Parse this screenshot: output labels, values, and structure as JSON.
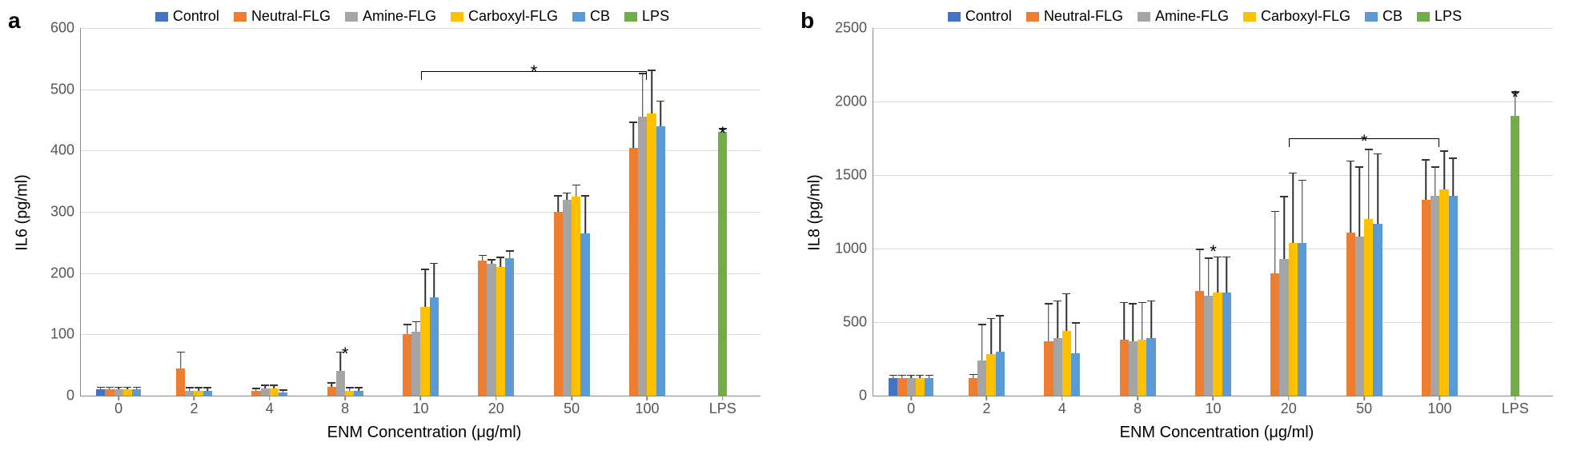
{
  "series": [
    {
      "name": "Control",
      "color": "#4472c4"
    },
    {
      "name": "Neutral-FLG",
      "color": "#ed7d31"
    },
    {
      "name": "Amine-FLG",
      "color": "#a5a5a5"
    },
    {
      "name": "Carboxyl-FLG",
      "color": "#ffc000"
    },
    {
      "name": "CB",
      "color": "#5b9bd5"
    },
    {
      "name": "LPS",
      "color": "#70ad47"
    }
  ],
  "panels": [
    {
      "id": "a",
      "label": "a",
      "ylabel": "IL6 (pg/ml)",
      "xlabel": "ENM Concentration (μg/ml)",
      "ymax": 600,
      "ytick_step": 100,
      "categories": [
        "0",
        "2",
        "4",
        "8",
        "10",
        "20",
        "50",
        "100",
        "LPS"
      ],
      "bracket": {
        "from_group": 4,
        "to_group": 7,
        "y": 530,
        "star_y": 545
      },
      "stars": [
        {
          "group": 3,
          "y": 85
        },
        {
          "group": 8,
          "y": 445
        }
      ],
      "data": {
        "0": {
          "Control": {
            "v": 10,
            "e": 3
          },
          "Neutral-FLG": {
            "v": 10,
            "e": 3
          },
          "Amine-FLG": {
            "v": 10,
            "e": 3
          },
          "Carboxyl-FLG": {
            "v": 10,
            "e": 3
          },
          "CB": {
            "v": 10,
            "e": 3
          }
        },
        "2": {
          "Neutral-FLG": {
            "v": 45,
            "e": 25
          },
          "Amine-FLG": {
            "v": 8,
            "e": 4
          },
          "Carboxyl-FLG": {
            "v": 8,
            "e": 4
          },
          "CB": {
            "v": 8,
            "e": 4
          }
        },
        "4": {
          "Neutral-FLG": {
            "v": 8,
            "e": 3
          },
          "Amine-FLG": {
            "v": 12,
            "e": 4
          },
          "Carboxyl-FLG": {
            "v": 12,
            "e": 4
          },
          "CB": {
            "v": 5,
            "e": 3
          }
        },
        "8": {
          "Neutral-FLG": {
            "v": 15,
            "e": 5
          },
          "Amine-FLG": {
            "v": 40,
            "e": 30
          },
          "Carboxyl-FLG": {
            "v": 8,
            "e": 4
          },
          "CB": {
            "v": 8,
            "e": 4
          }
        },
        "10": {
          "Neutral-FLG": {
            "v": 100,
            "e": 15
          },
          "Amine-FLG": {
            "v": 105,
            "e": 15
          },
          "Carboxyl-FLG": {
            "v": 145,
            "e": 60
          },
          "CB": {
            "v": 160,
            "e": 55
          }
        },
        "20": {
          "Neutral-FLG": {
            "v": 220,
            "e": 8
          },
          "Amine-FLG": {
            "v": 215,
            "e": 6
          },
          "Carboxyl-FLG": {
            "v": 210,
            "e": 15
          },
          "CB": {
            "v": 225,
            "e": 10
          }
        },
        "50": {
          "Neutral-FLG": {
            "v": 300,
            "e": 25
          },
          "Amine-FLG": {
            "v": 320,
            "e": 10
          },
          "Carboxyl-FLG": {
            "v": 325,
            "e": 18
          },
          "CB": {
            "v": 265,
            "e": 60
          }
        },
        "100": {
          "Neutral-FLG": {
            "v": 405,
            "e": 40
          },
          "Amine-FLG": {
            "v": 455,
            "e": 70
          },
          "Carboxyl-FLG": {
            "v": 460,
            "e": 70
          },
          "CB": {
            "v": 440,
            "e": 40
          }
        },
        "LPS": {
          "LPS": {
            "v": 430,
            "e": 5
          }
        }
      }
    },
    {
      "id": "b",
      "label": "b",
      "ylabel": "IL8 (pg/ml)",
      "xlabel": "ENM Concentration (μg/ml)",
      "ymax": 2500,
      "ytick_step": 500,
      "categories": [
        "0",
        "2",
        "4",
        "8",
        "10",
        "20",
        "50",
        "100",
        "LPS"
      ],
      "bracket": {
        "from_group": 5,
        "to_group": 7,
        "y": 1750,
        "star_y": 1800
      },
      "stars": [
        {
          "group": 4,
          "y": 1050
        },
        {
          "group": 8,
          "y": 2100
        }
      ],
      "data": {
        "0": {
          "Control": {
            "v": 120,
            "e": 15
          },
          "Neutral-FLG": {
            "v": 120,
            "e": 15
          },
          "Amine-FLG": {
            "v": 120,
            "e": 15
          },
          "Carboxyl-FLG": {
            "v": 120,
            "e": 15
          },
          "CB": {
            "v": 120,
            "e": 15
          }
        },
        "2": {
          "Neutral-FLG": {
            "v": 120,
            "e": 20
          },
          "Amine-FLG": {
            "v": 240,
            "e": 240
          },
          "Carboxyl-FLG": {
            "v": 280,
            "e": 240
          },
          "CB": {
            "v": 300,
            "e": 240
          }
        },
        "4": {
          "Neutral-FLG": {
            "v": 370,
            "e": 250
          },
          "Amine-FLG": {
            "v": 390,
            "e": 250
          },
          "Carboxyl-FLG": {
            "v": 440,
            "e": 250
          },
          "CB": {
            "v": 290,
            "e": 200
          }
        },
        "8": {
          "Neutral-FLG": {
            "v": 380,
            "e": 250
          },
          "Amine-FLG": {
            "v": 370,
            "e": 250
          },
          "Carboxyl-FLG": {
            "v": 380,
            "e": 250
          },
          "CB": {
            "v": 390,
            "e": 250
          }
        },
        "10": {
          "Neutral-FLG": {
            "v": 710,
            "e": 280
          },
          "Amine-FLG": {
            "v": 680,
            "e": 250
          },
          "Carboxyl-FLG": {
            "v": 700,
            "e": 240
          },
          "CB": {
            "v": 700,
            "e": 240
          }
        },
        "20": {
          "Neutral-FLG": {
            "v": 830,
            "e": 420
          },
          "Amine-FLG": {
            "v": 930,
            "e": 420
          },
          "Carboxyl-FLG": {
            "v": 1040,
            "e": 470
          },
          "CB": {
            "v": 1040,
            "e": 420
          }
        },
        "50": {
          "Neutral-FLG": {
            "v": 1110,
            "e": 480
          },
          "Amine-FLG": {
            "v": 1080,
            "e": 470
          },
          "Carboxyl-FLG": {
            "v": 1200,
            "e": 470
          },
          "CB": {
            "v": 1170,
            "e": 470
          }
        },
        "100": {
          "Neutral-FLG": {
            "v": 1330,
            "e": 270
          },
          "Amine-FLG": {
            "v": 1360,
            "e": 190
          },
          "Carboxyl-FLG": {
            "v": 1400,
            "e": 260
          },
          "CB": {
            "v": 1360,
            "e": 250
          }
        },
        "LPS": {
          "LPS": {
            "v": 1900,
            "e": 160
          }
        }
      }
    }
  ]
}
